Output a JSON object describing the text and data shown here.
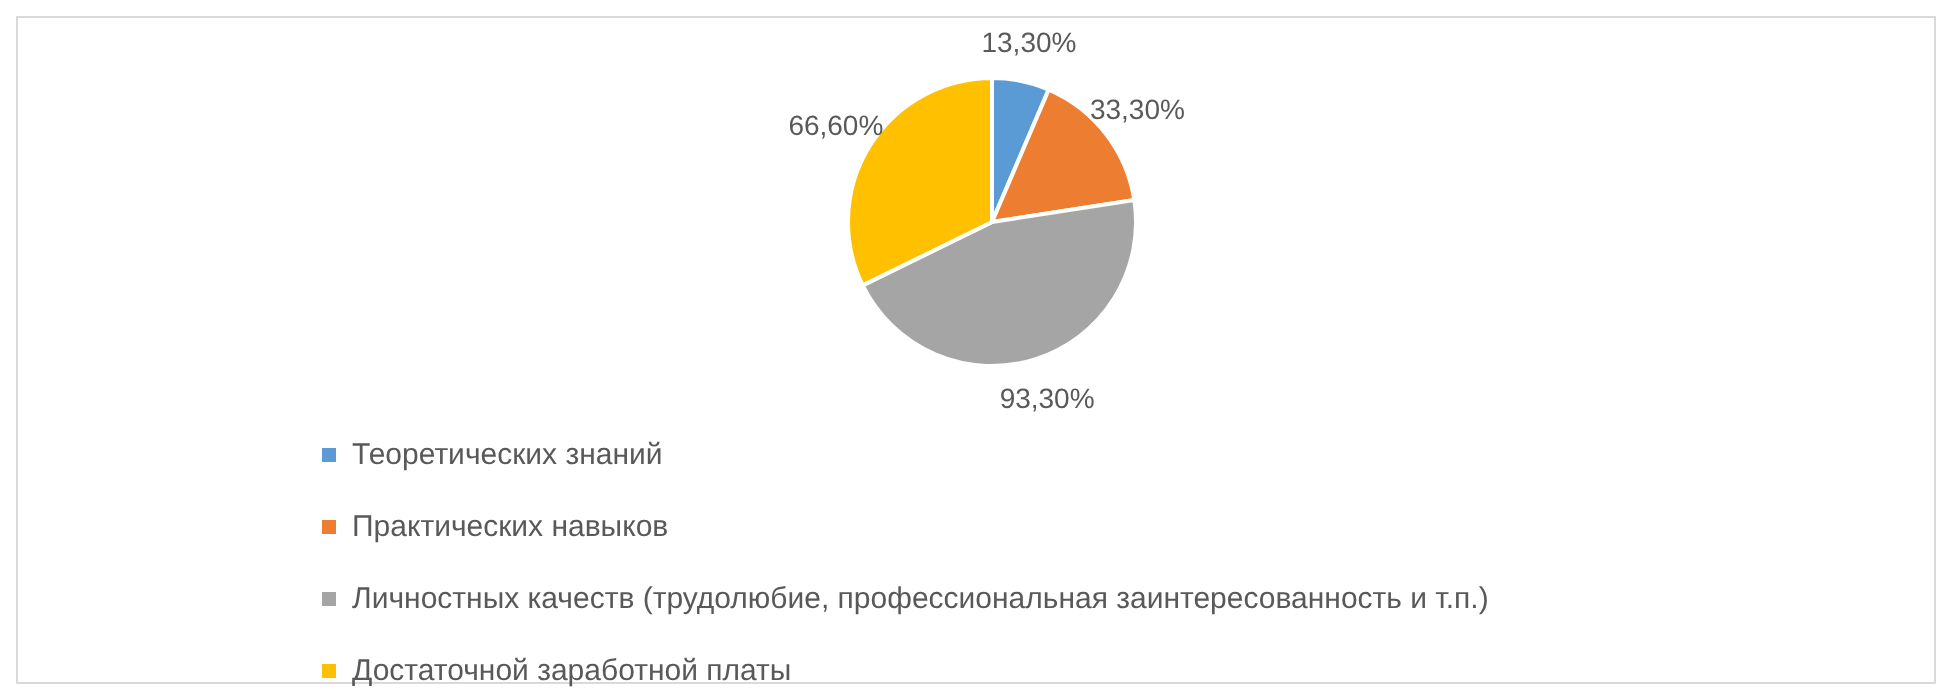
{
  "chart_data": {
    "type": "pie",
    "categories": [
      "Теоретических знаний",
      "Практических навыков",
      "Личностных качеств (трудолюбие, профессиональная заинтересованность и т.п.)",
      "Достаточной заработной платы"
    ],
    "values": [
      13.3,
      33.3,
      93.3,
      66.6
    ],
    "value_labels": [
      "13,30%",
      "33,30%",
      "93,30%",
      "66,60%"
    ],
    "colors": [
      "#5b9bd5",
      "#ed7d31",
      "#a5a5a5",
      "#ffc000"
    ],
    "legend": "bottom left"
  }
}
